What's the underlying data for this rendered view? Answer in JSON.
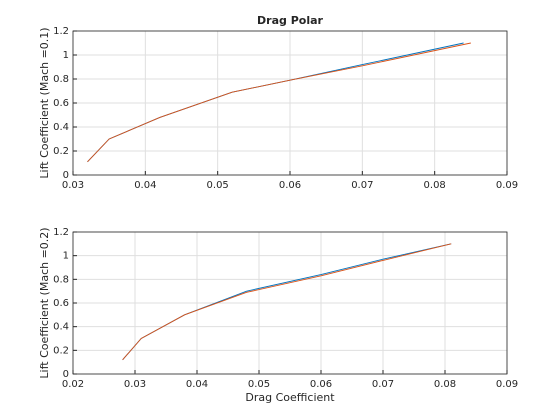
{
  "chart_data": [
    {
      "type": "line",
      "title": "Drag Polar",
      "ylabel": "Lift Coefficient (Mach =0.1)",
      "xlim": [
        0.03,
        0.09
      ],
      "xticks": [
        0.03,
        0.04,
        0.05,
        0.06,
        0.07,
        0.08,
        0.09
      ],
      "ylim": [
        0,
        1.2
      ],
      "yticks": [
        0,
        0.2,
        0.4,
        0.6,
        0.8,
        1,
        1.2
      ],
      "grid": true,
      "series": [
        {
          "color": "#0072bd",
          "x": [
            0.032,
            0.035,
            0.042,
            0.052,
            0.06,
            0.07,
            0.084
          ],
          "values": [
            0.11,
            0.3,
            0.48,
            0.69,
            0.79,
            0.92,
            1.1
          ]
        },
        {
          "color": "#d95319",
          "x": [
            0.032,
            0.035,
            0.042,
            0.052,
            0.06,
            0.07,
            0.085
          ],
          "values": [
            0.11,
            0.3,
            0.48,
            0.69,
            0.79,
            0.91,
            1.1
          ]
        }
      ]
    },
    {
      "type": "line",
      "xlabel": "Drag Coefficient",
      "ylabel": "Lift Coefficient (Mach =0.2)",
      "xlim": [
        0.02,
        0.09
      ],
      "xticks": [
        0.02,
        0.03,
        0.04,
        0.05,
        0.06,
        0.07,
        0.08,
        0.09
      ],
      "ylim": [
        0,
        1.2
      ],
      "yticks": [
        0,
        0.2,
        0.4,
        0.6,
        0.8,
        1,
        1.2
      ],
      "grid": true,
      "series": [
        {
          "color": "#0072bd",
          "x": [
            0.028,
            0.031,
            0.038,
            0.048,
            0.06,
            0.07,
            0.081
          ],
          "values": [
            0.12,
            0.3,
            0.5,
            0.7,
            0.84,
            0.97,
            1.1
          ]
        },
        {
          "color": "#d95319",
          "x": [
            0.028,
            0.031,
            0.038,
            0.048,
            0.06,
            0.07,
            0.081
          ],
          "values": [
            0.12,
            0.3,
            0.5,
            0.69,
            0.83,
            0.96,
            1.1
          ]
        }
      ]
    }
  ]
}
